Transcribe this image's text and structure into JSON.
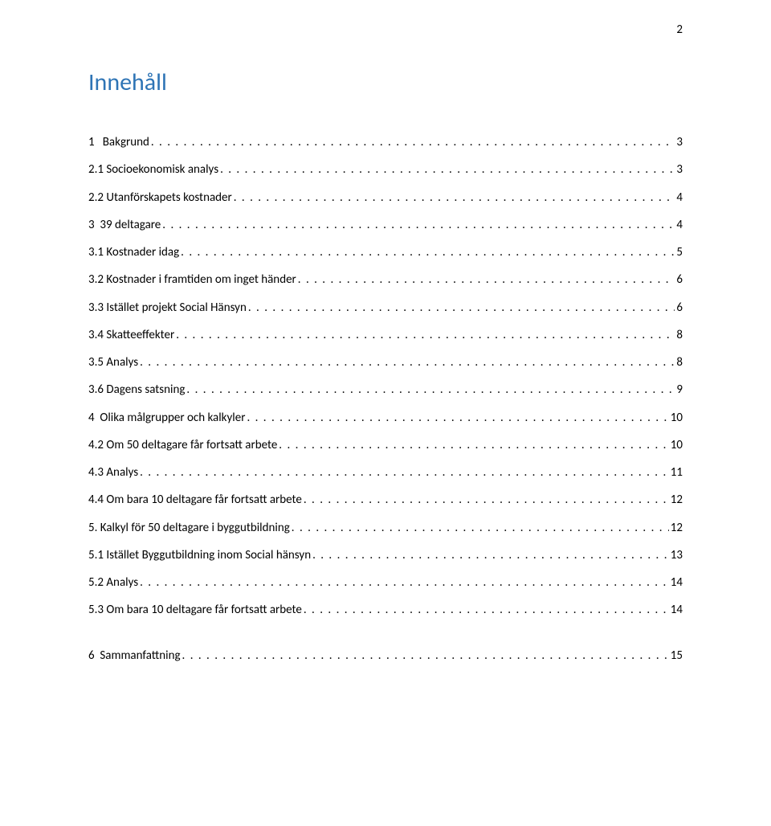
{
  "page_number": "2",
  "title": "Innehåll",
  "title_color": "#2e74b5",
  "toc": [
    {
      "label": "1   Bakgrund",
      "page": "3",
      "level": 1
    },
    {
      "label": "2.1 Socioekonomisk analys",
      "page": "3",
      "level": 2
    },
    {
      "label": "2.2 Utanförskapets kostnader",
      "page": "4",
      "level": 2
    },
    {
      "label": "3  39 deltagare",
      "page": "4",
      "level": 1
    },
    {
      "label": "3.1 Kostnader idag",
      "page": "5",
      "level": 2
    },
    {
      "label": "3.2 Kostnader i framtiden om inget händer",
      "page": "6",
      "level": 2
    },
    {
      "label": "3.3 Istället projekt Social Hänsyn",
      "page": "6",
      "level": 2
    },
    {
      "label": "3.4 Skatteeffekter",
      "page": "8",
      "level": 2
    },
    {
      "label": "3.5 Analys",
      "page": "8",
      "level": 2
    },
    {
      "label": "3.6 Dagens satsning",
      "page": "9",
      "level": 2
    },
    {
      "label": "4  Olika målgrupper och kalkyler",
      "page": "10",
      "level": 1
    },
    {
      "label": "4.2 Om 50 deltagare får fortsatt arbete",
      "page": "10",
      "level": 2
    },
    {
      "label": "4.3 Analys",
      "page": "11",
      "level": 2
    },
    {
      "label": "4.4 Om bara 10 deltagare får fortsatt arbete",
      "page": "12",
      "level": 2
    },
    {
      "label": "5. Kalkyl för 50 deltagare i byggutbildning",
      "page": "12",
      "level": 2
    },
    {
      "label": "5.1 Istället Byggutbildning inom Social hänsyn",
      "page": "13",
      "level": 2
    },
    {
      "label": "5.2 Analys",
      "page": "14",
      "level": 2
    },
    {
      "label": "5.3 Om bara 10 deltagare får fortsatt arbete",
      "page": "14",
      "level": 2
    },
    {
      "label": "6  Sammanfattning",
      "page": "15",
      "level": 1,
      "gap_before": true
    }
  ],
  "colors": {
    "background": "#ffffff",
    "text": "#000000",
    "title": "#2e74b5"
  },
  "fonts": {
    "body_family": "Calibri",
    "body_size_pt": 11,
    "title_size_pt": 22
  }
}
